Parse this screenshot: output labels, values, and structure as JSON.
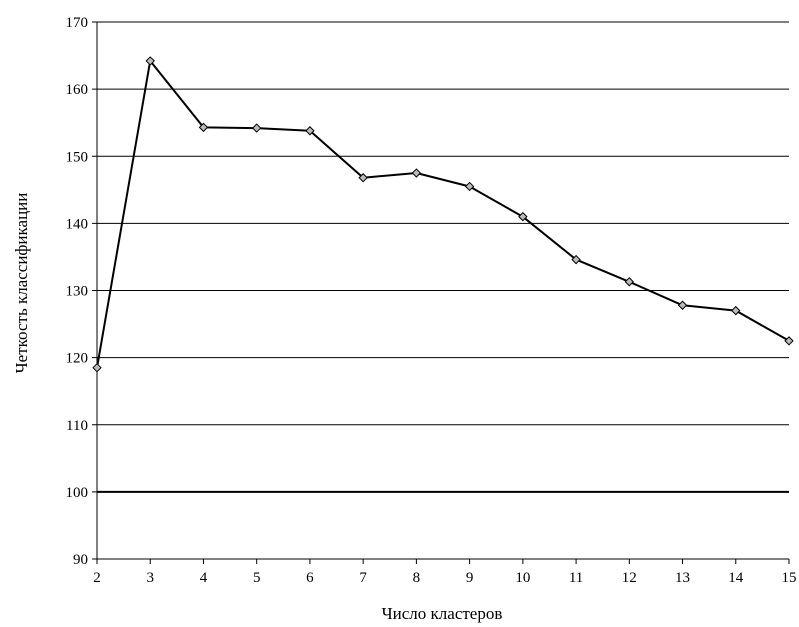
{
  "chart_data": {
    "type": "line",
    "title": "",
    "xlabel": "Число кластеров",
    "ylabel": "Четкость классификации",
    "xlim": [
      2,
      15
    ],
    "ylim": [
      90,
      170
    ],
    "y_ticks": [
      90,
      100,
      110,
      120,
      130,
      140,
      150,
      160,
      170
    ],
    "x_ticks": [
      2,
      3,
      4,
      5,
      6,
      7,
      8,
      9,
      10,
      11,
      12,
      13,
      14,
      15
    ],
    "grid": "horizontal",
    "reference_line": 100,
    "legend": "none",
    "series": [
      {
        "x": [
          2,
          3,
          4,
          5,
          6,
          7,
          8,
          9,
          10,
          11,
          12,
          13,
          14,
          15
        ],
        "y": [
          118.5,
          164.2,
          154.3,
          154.2,
          153.8,
          146.8,
          147.5,
          145.5,
          141.0,
          134.6,
          131.3,
          127.8,
          127.0,
          122.5
        ],
        "color": "#000000",
        "marker": "diamond"
      }
    ]
  }
}
